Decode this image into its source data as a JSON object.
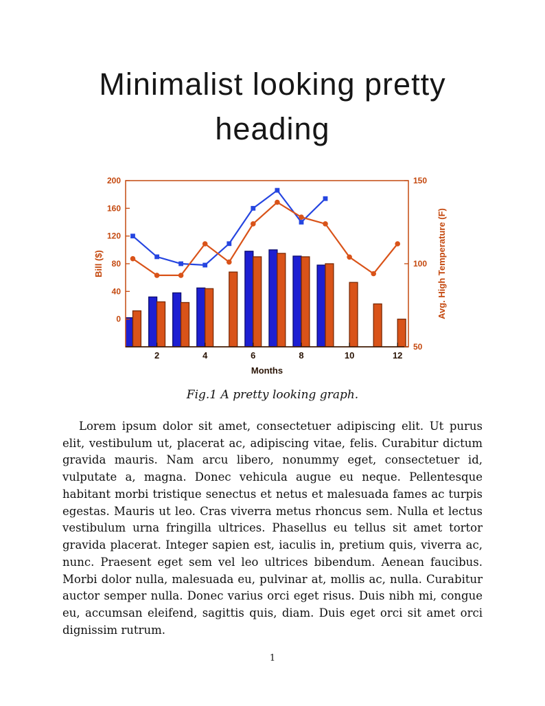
{
  "document": {
    "heading": "Minimalist looking pretty heading",
    "figure_caption": "Fig.1 A pretty looking graph.",
    "paragraph": "Lorem ipsum dolor sit amet, consectetuer adipiscing elit. Ut purus elit, vestibulum ut, placerat ac, adipiscing vitae, felis. Curabitur dictum gravida mauris. Nam arcu libero, nonummy eget, consectetuer id, vulputate a, magna. Donec vehicula augue eu neque. Pellentesque habitant morbi tristique senectus et netus et malesuada fames ac turpis egestas. Mauris ut leo. Cras viverra metus rhoncus sem. Nulla et lectus vestibulum urna fringilla ultrices. Phasellus eu tellus sit amet tortor gravida placerat. Integer sapien est, iaculis in, pretium quis, viverra ac, nunc. Praesent eget sem vel leo ultrices bibendum. Aenean faucibus. Morbi dolor nulla, malesuada eu, pulvinar at, mollis ac, nulla. Curabitur auctor semper nulla. Donec varius orci eget risus. Duis nibh mi, congue eu, accumsan eleifend, sagittis quis, diam. Duis eget orci sit amet orci dignissim rutrum.",
    "page_number": "1"
  },
  "chart_data": {
    "type": "bar",
    "subtype": "dual-axis grouped bars with overlaid marker lines (MATLAB style)",
    "title": "",
    "xlabel": "Months",
    "ylabel_left": "Bill ($)",
    "ylabel_right": "Avg. High Temperature (F)",
    "x": [
      1,
      2,
      3,
      4,
      5,
      6,
      7,
      8,
      9,
      10,
      11,
      12
    ],
    "xticks": [
      2,
      4,
      6,
      8,
      10,
      12
    ],
    "xlim": [
      0.7,
      12.45
    ],
    "left_ylim": [
      -40,
      200
    ],
    "left_yticks": [
      0,
      40,
      80,
      120,
      160,
      200
    ],
    "right_ylim": [
      50,
      150
    ],
    "right_yticks": [
      50,
      100,
      150
    ],
    "grid": false,
    "legend": false,
    "axis_color": "#c4480e",
    "x_axis_text_color": "#2a1405",
    "series": [
      {
        "name": "bill-bars-blue",
        "type": "bar",
        "axis": "left",
        "color": "#1d1fd2",
        "edge": "#0c0d6e",
        "values": [
          2,
          32,
          38,
          45,
          null,
          98,
          100,
          91,
          78,
          null,
          null,
          null
        ]
      },
      {
        "name": "bill-bars-orange",
        "type": "bar",
        "axis": "left",
        "color": "#d95319",
        "edge": "#7a2a05",
        "values": [
          12,
          25,
          24,
          44,
          68,
          90,
          95,
          90,
          80,
          53,
          22,
          0
        ]
      },
      {
        "name": "bill-line-blue",
        "type": "line",
        "marker": "square",
        "axis": "left",
        "color": "#2545e0",
        "values": [
          120,
          90,
          80,
          78,
          109,
          160,
          186,
          140,
          174,
          null,
          null,
          null
        ]
      },
      {
        "name": "temperature-line-orange",
        "type": "line",
        "marker": "circle",
        "axis": "right",
        "color": "#d95319",
        "values": [
          103,
          93,
          93,
          112,
          101,
          124,
          137,
          128,
          124,
          104,
          94,
          112
        ]
      }
    ]
  }
}
